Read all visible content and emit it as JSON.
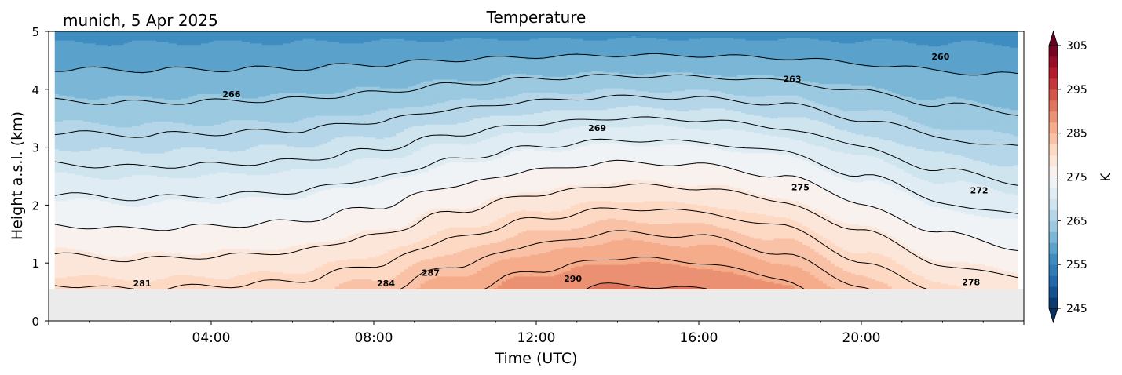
{
  "chart_data": {
    "type": "heatmap",
    "title": "Temperature",
    "subtitle": "munich, 5 Apr 2025",
    "xlabel": "Time (UTC)",
    "ylabel": "Height a.s.l. (km)",
    "xlim": [
      0,
      24
    ],
    "ylim": [
      0,
      5
    ],
    "x_ticks": [
      {
        "value": 4,
        "label": "04:00"
      },
      {
        "value": 8,
        "label": "08:00"
      },
      {
        "value": 12,
        "label": "12:00"
      },
      {
        "value": 16,
        "label": "16:00"
      },
      {
        "value": 20,
        "label": "20:00"
      }
    ],
    "y_ticks": [
      {
        "value": 0,
        "label": "0"
      },
      {
        "value": 1,
        "label": "1"
      },
      {
        "value": 2,
        "label": "2"
      },
      {
        "value": 3,
        "label": "3"
      },
      {
        "value": 4,
        "label": "4"
      },
      {
        "value": 5,
        "label": "5"
      }
    ],
    "data_bottom_km": 0.55,
    "missing_color": "#ebebeb",
    "colorbar": {
      "label": "K",
      "vmin": 245,
      "vmax": 305,
      "step": 2.5,
      "ticks": [
        {
          "value": 245,
          "label": "245"
        },
        {
          "value": 255,
          "label": "255"
        },
        {
          "value": 265,
          "label": "265"
        },
        {
          "value": 275,
          "label": "275"
        },
        {
          "value": 285,
          "label": "285"
        },
        {
          "value": 295,
          "label": "295"
        },
        {
          "value": 305,
          "label": "305"
        }
      ],
      "colormap": "RdBu_r",
      "extend": "both"
    },
    "temperature_profile": {
      "surface_K_by_hour": [
        {
          "t": 0,
          "T": 281.5
        },
        {
          "t": 2,
          "T": 281.0
        },
        {
          "t": 4,
          "T": 281.3
        },
        {
          "t": 6,
          "T": 281.8
        },
        {
          "t": 8,
          "T": 283.5
        },
        {
          "t": 10,
          "T": 286.5
        },
        {
          "t": 12,
          "T": 289.0
        },
        {
          "t": 14,
          "T": 290.5
        },
        {
          "t": 16,
          "T": 290.0
        },
        {
          "t": 18,
          "T": 288.0
        },
        {
          "t": 20,
          "T": 284.0
        },
        {
          "t": 22,
          "T": 280.5
        },
        {
          "t": 24,
          "T": 279.0
        }
      ],
      "lapse_K_per_km": 6.0,
      "top_temperature_K_at_5km": 256.5
    },
    "contour_levels": [
      {
        "value": 260,
        "label": "260",
        "label_at": {
          "t": 21.95,
          "h": 4.55
        }
      },
      {
        "value": 263,
        "label": "263",
        "label_at": {
          "t": 18.3,
          "h": 4.17
        }
      },
      {
        "value": 266,
        "label": "266",
        "label_at": {
          "t": 4.5,
          "h": 3.9
        }
      },
      {
        "value": 269,
        "label": "269",
        "label_at": {
          "t": 13.5,
          "h": 3.32
        }
      },
      {
        "value": 272,
        "label": "272",
        "label_at": {
          "t": 22.9,
          "h": 2.24
        }
      },
      {
        "value": 275,
        "label": "275",
        "label_at": {
          "t": 18.5,
          "h": 2.3
        }
      },
      {
        "value": 278,
        "label": "278",
        "label_at": {
          "t": 22.7,
          "h": 0.66
        }
      },
      {
        "value": 281,
        "label": "281",
        "label_at": {
          "t": 2.3,
          "h": 0.64
        }
      },
      {
        "value": 284,
        "label": "284",
        "label_at": {
          "t": 8.3,
          "h": 0.64
        }
      },
      {
        "value": 287,
        "label": "287",
        "label_at": {
          "t": 9.4,
          "h": 0.82
        }
      },
      {
        "value": 290,
        "label": "290",
        "label_at": {
          "t": 12.9,
          "h": 0.72
        }
      }
    ]
  }
}
